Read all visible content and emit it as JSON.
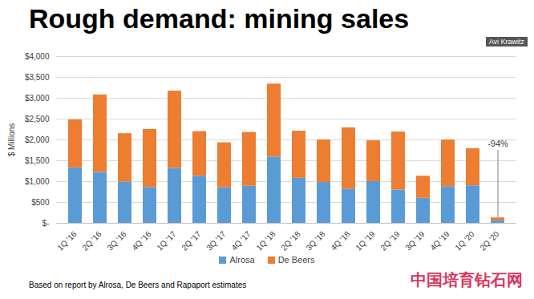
{
  "chart_data": {
    "type": "bar",
    "stacked": true,
    "title": "Rough demand: mining sales",
    "y_label": "$ Millions",
    "footnote": "Based on report by Alrosa, De Beers and Rapaport estimates",
    "watermark": "中国培育钻石网",
    "speaker": "Avi Krawitz",
    "categories": [
      "1Q '16",
      "2Q '16",
      "3Q '16",
      "4Q '16",
      "1Q '17",
      "2Q '17",
      "3Q '17",
      "4Q '17",
      "1Q '18",
      "2Q '18",
      "3Q '18",
      "4Q '18",
      "1Q '19",
      "2Q '19",
      "3Q '19",
      "4Q '19",
      "1Q '20",
      "2Q '20"
    ],
    "series": [
      {
        "name": "Alrosa",
        "color": "#5b9bd5",
        "values": [
          1330,
          1220,
          990,
          860,
          1320,
          1130,
          850,
          890,
          1590,
          1080,
          980,
          820,
          1000,
          800,
          600,
          880,
          900,
          60
        ]
      },
      {
        "name": "De Beers",
        "color": "#ed7d31",
        "values": [
          1150,
          1860,
          1160,
          1390,
          1850,
          1070,
          1080,
          1290,
          1750,
          1130,
          1020,
          1470,
          980,
          1390,
          530,
          1120,
          890,
          70
        ]
      }
    ],
    "annotations": [
      {
        "text": "-94%",
        "x": "2Q '20",
        "y": 1750
      }
    ],
    "ylim": [
      0,
      4000
    ],
    "yticks": [
      {
        "value": 0,
        "label": "$-"
      },
      {
        "value": 500,
        "label": "$500"
      },
      {
        "value": 1000,
        "label": "$1,000"
      },
      {
        "value": 1500,
        "label": "$1,500"
      },
      {
        "value": 2000,
        "label": "$2,000"
      },
      {
        "value": 2500,
        "label": "$2,500"
      },
      {
        "value": 3000,
        "label": "$3,000"
      },
      {
        "value": 3500,
        "label": "$3,500"
      },
      {
        "value": 4000,
        "label": "$4,000"
      }
    ],
    "grid": true,
    "legend": "bottom"
  }
}
